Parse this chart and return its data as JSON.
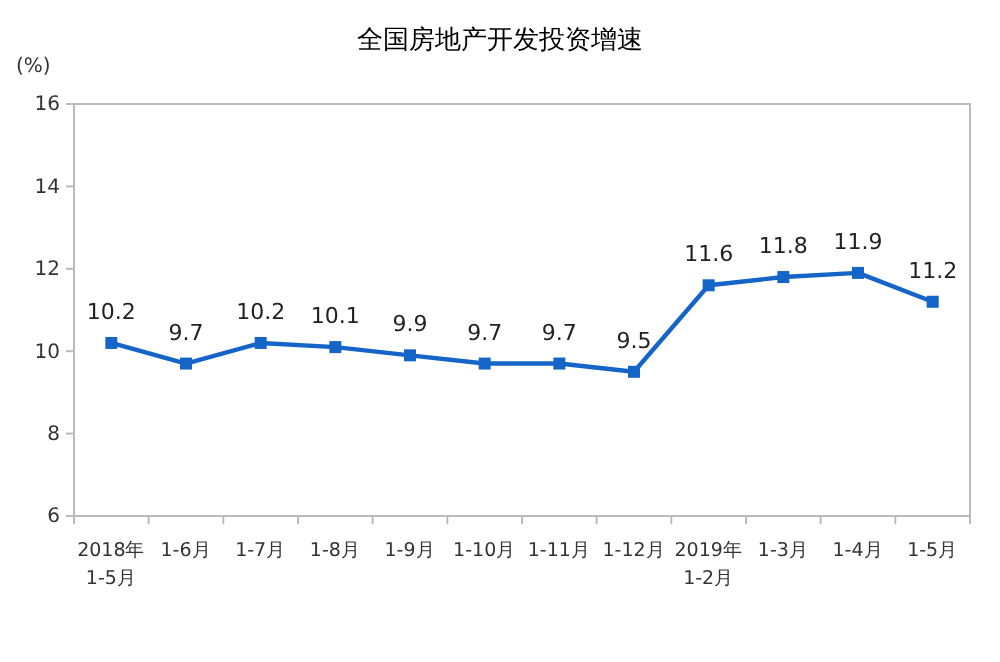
{
  "chart_data": {
    "type": "line",
    "title": "全国房地产开发投资增速",
    "ylabel": "(%)",
    "categories": [
      "2018年\n1-5月",
      "1-6月",
      "1-7月",
      "1-8月",
      "1-9月",
      "1-10月",
      "1-11月",
      "1-12月",
      "2019年\n1-2月",
      "1-3月",
      "1-4月",
      "1-5月"
    ],
    "series": [
      {
        "color": "#1565c8",
        "values": [
          10.2,
          9.7,
          10.2,
          10.1,
          9.9,
          9.7,
          9.7,
          9.5,
          11.6,
          11.8,
          11.9,
          11.2
        ]
      }
    ],
    "ylim": [
      6,
      16
    ],
    "yticks": [
      6,
      8,
      10,
      12,
      14,
      16
    ],
    "marker": "square",
    "data_labels": true,
    "grid": false,
    "line_style": "solid"
  }
}
